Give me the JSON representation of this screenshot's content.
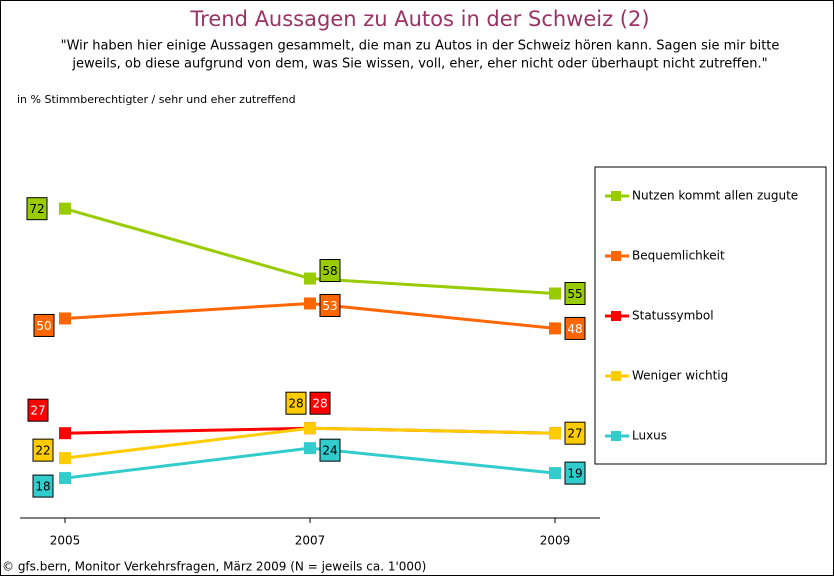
{
  "chart_data": {
    "type": "line",
    "title": "Trend Aussagen zu Autos in der Schweiz (2)",
    "subtitle": [
      "\"Wir haben hier einige Aussagen gesammelt, die man zu Autos in der Schweiz hören kann. Sagen sie mir bitte",
      "jeweils, ob diese aufgrund von dem, was Sie wissen, voll, eher, eher nicht oder überhaupt nicht zutreffen.\""
    ],
    "note": "in % Stimmberechtigter / sehr und eher zutreffend",
    "source": "© gfs.bern, Monitor Verkehrsfragen, März 2009 (N = jeweils ca. 1'000)",
    "categories": [
      "2005",
      "2007",
      "2009"
    ],
    "ylim": [
      10,
      100
    ],
    "legend": "right",
    "series": [
      {
        "name": "Nutzen kommt allen zugute",
        "color": "#99cc00",
        "values": [
          72,
          58,
          55
        ]
      },
      {
        "name": "Bequemlichkeit",
        "color": "#ff6600",
        "values": [
          50,
          53,
          48
        ]
      },
      {
        "name": "Statussymbol",
        "color": "#ff0000",
        "values": [
          27,
          28,
          27
        ],
        "value_labels": [
          "27",
          "28",
          null
        ]
      },
      {
        "name": "Weniger wichtig",
        "color": "#ffcc00",
        "values": [
          22,
          28,
          27
        ]
      },
      {
        "name": "Luxus",
        "color": "#33cccc",
        "values": [
          18,
          24,
          19
        ]
      }
    ]
  }
}
